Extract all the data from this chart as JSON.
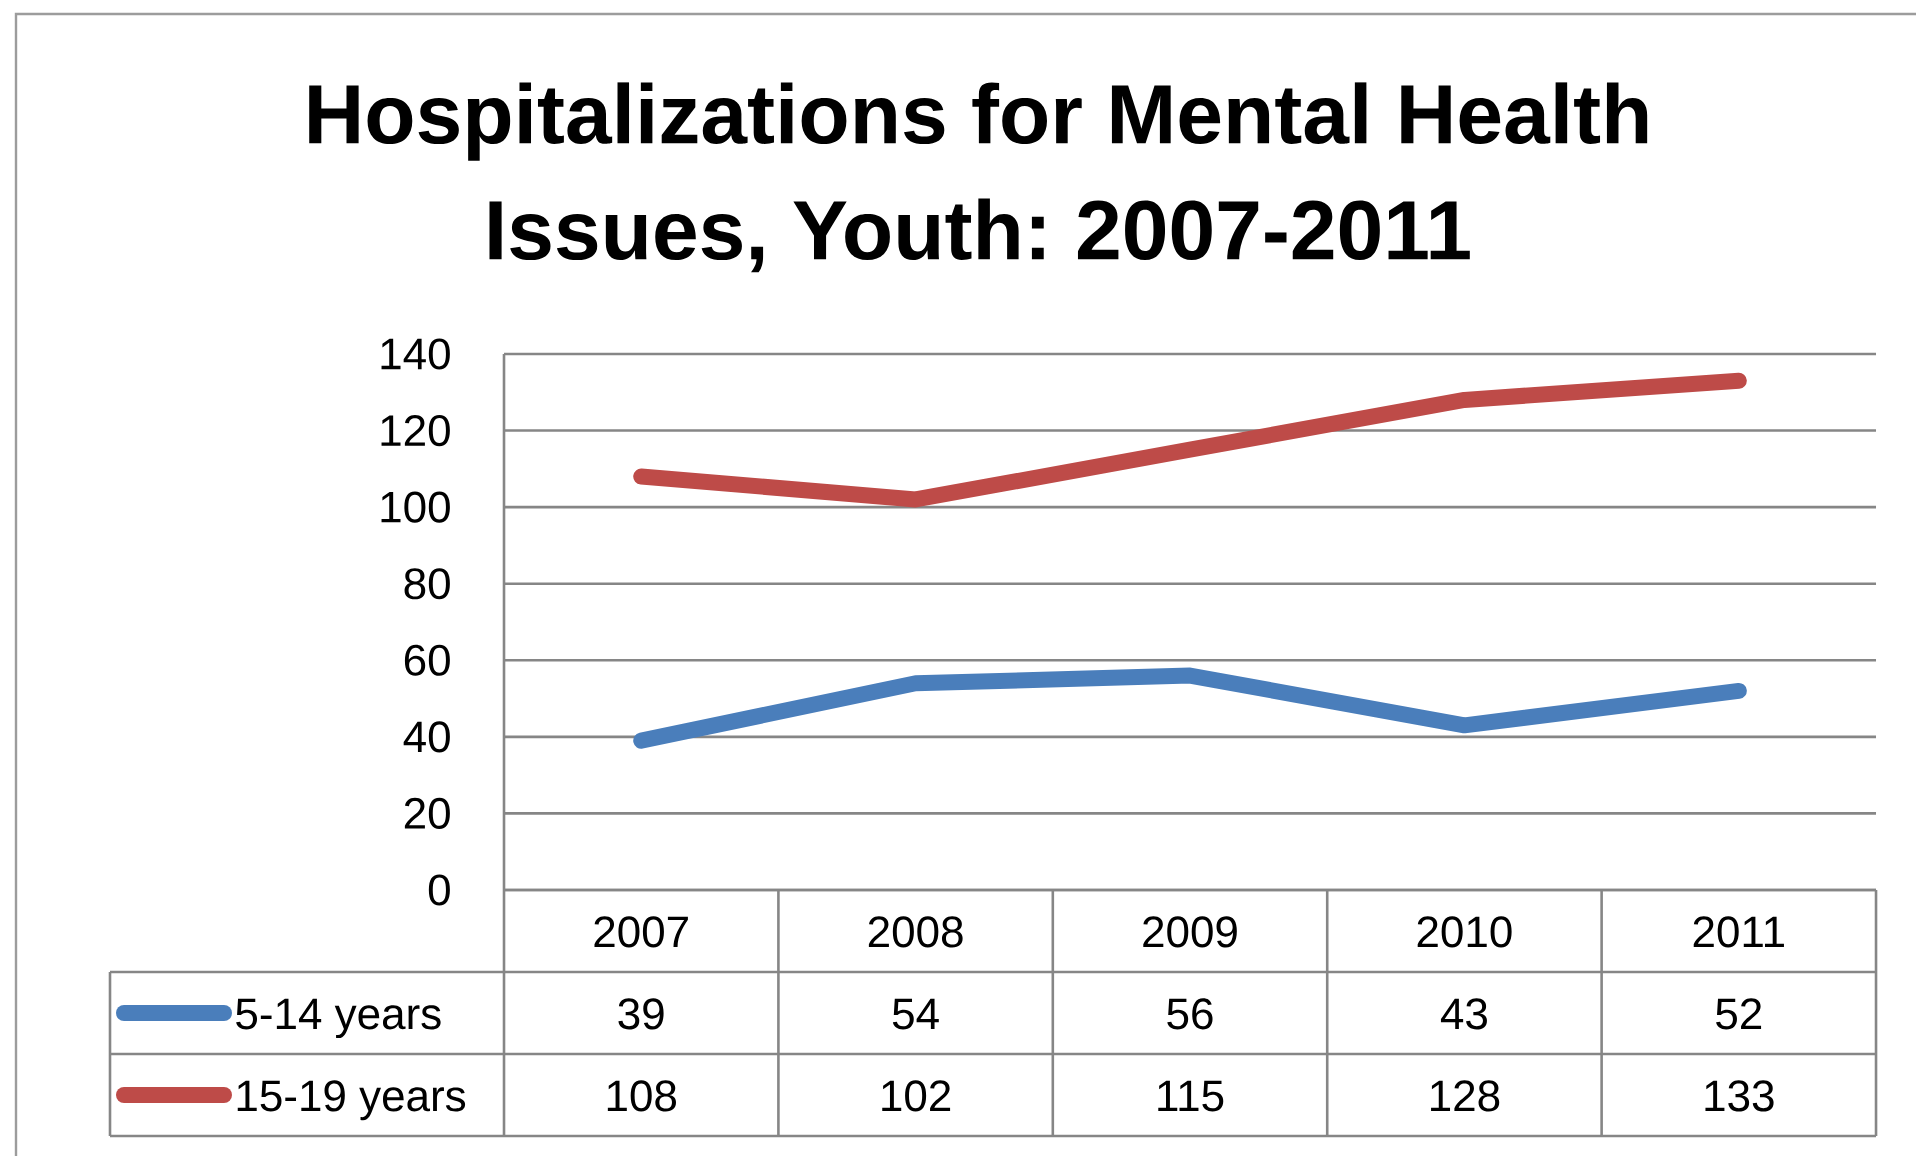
{
  "chart_data": {
    "type": "line",
    "title": "Hospitalizations for Mental Health Issues, Youth: 2007-2011",
    "categories": [
      "2007",
      "2008",
      "2009",
      "2010",
      "2011"
    ],
    "series": [
      {
        "name": "5-14 years",
        "color": "#4a7ebb",
        "values": [
          39,
          54,
          56,
          43,
          52
        ]
      },
      {
        "name": "15-19 years",
        "color": "#be4b48",
        "values": [
          108,
          102,
          115,
          128,
          133
        ]
      }
    ],
    "ylim": [
      0,
      140
    ],
    "yticks": [
      0,
      20,
      40,
      60,
      80,
      100,
      120,
      140
    ],
    "grid": "y",
    "legend": "bottom",
    "data_labels": true,
    "line_style": "solid"
  }
}
